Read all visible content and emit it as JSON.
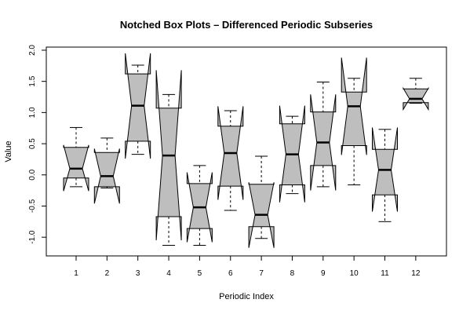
{
  "chart_data": {
    "type": "box",
    "title": "Notched Box Plots – Differenced Periodic Subseries",
    "xlabel": "Periodic Index",
    "ylabel": "Value",
    "ylim": [
      -1.3,
      2.05
    ],
    "yticks": [
      -1.0,
      -0.5,
      0.0,
      0.5,
      1.0,
      1.5,
      2.0
    ],
    "ytick_labels": [
      "-1.0",
      "-0.5",
      "0.0",
      "0.5",
      "1.0",
      "1.5",
      "2.0"
    ],
    "grid": false,
    "colors": {
      "box_fill": "#bebebe",
      "stroke": "#000000",
      "background": "#ffffff"
    },
    "categories": [
      "1",
      "2",
      "3",
      "4",
      "5",
      "6",
      "7",
      "8",
      "9",
      "10",
      "11",
      "12"
    ],
    "boxes": [
      {
        "category": "1",
        "min": -0.19,
        "q1": -0.05,
        "median": 0.1,
        "q3": 0.44,
        "max": 0.76,
        "notch_low": -0.26,
        "notch_high": 0.48
      },
      {
        "category": "2",
        "min": -0.21,
        "q1": -0.19,
        "median": -0.02,
        "q3": 0.36,
        "max": 0.59,
        "notch_low": -0.46,
        "notch_high": 0.42
      },
      {
        "category": "3",
        "min": 0.33,
        "q1": 0.54,
        "median": 1.11,
        "q3": 1.62,
        "max": 1.76,
        "notch_low": 0.26,
        "notch_high": 1.95
      },
      {
        "category": "4",
        "min": -1.13,
        "q1": -0.67,
        "median": 0.31,
        "q3": 1.07,
        "max": 1.29,
        "notch_low": -1.05,
        "notch_high": 1.68
      },
      {
        "category": "5",
        "min": -1.13,
        "q1": -0.86,
        "median": -0.52,
        "q3": -0.14,
        "max": 0.15,
        "notch_low": -1.08,
        "notch_high": 0.04
      },
      {
        "category": "6",
        "min": -0.57,
        "q1": -0.18,
        "median": 0.35,
        "q3": 0.78,
        "max": 1.03,
        "notch_low": -0.4,
        "notch_high": 1.1
      },
      {
        "category": "7",
        "min": -1.02,
        "q1": -0.83,
        "median": -0.64,
        "q3": -0.15,
        "max": 0.3,
        "notch_low": -1.17,
        "notch_high": -0.12
      },
      {
        "category": "8",
        "min": -0.3,
        "q1": -0.16,
        "median": 0.33,
        "q3": 0.82,
        "max": 0.94,
        "notch_low": -0.44,
        "notch_high": 1.11
      },
      {
        "category": "9",
        "min": -0.19,
        "q1": 0.15,
        "median": 0.52,
        "q3": 1.01,
        "max": 1.49,
        "notch_low": -0.25,
        "notch_high": 1.29
      },
      {
        "category": "10",
        "min": -0.16,
        "q1": 0.47,
        "median": 1.1,
        "q3": 1.33,
        "max": 1.55,
        "notch_low": 0.32,
        "notch_high": 1.88
      },
      {
        "category": "11",
        "min": -0.75,
        "q1": -0.32,
        "median": 0.08,
        "q3": 0.41,
        "max": 0.73,
        "notch_low": -0.59,
        "notch_high": 0.76
      },
      {
        "category": "12",
        "min": 1.15,
        "q1": 1.16,
        "median": 1.22,
        "q3": 1.38,
        "max": 1.55,
        "notch_low": 1.05,
        "notch_high": 1.39
      }
    ]
  }
}
